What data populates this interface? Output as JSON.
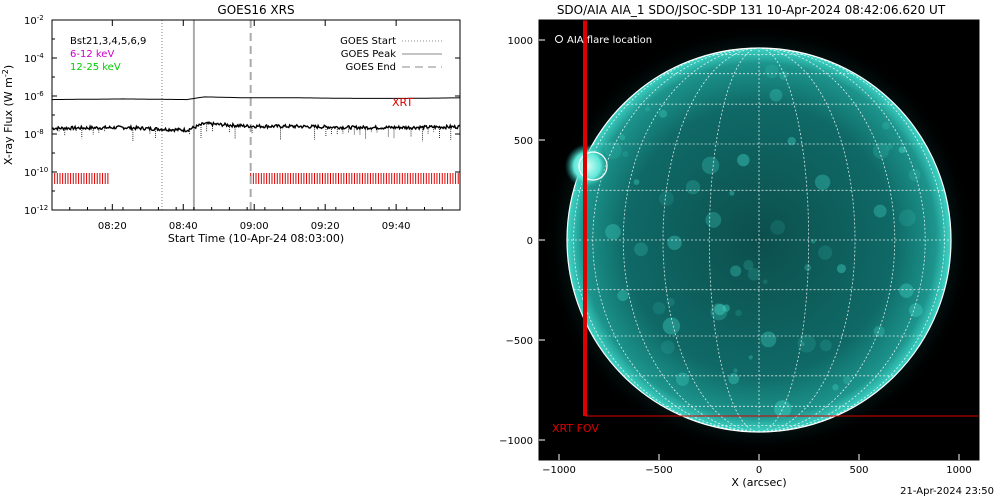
{
  "chart_data": [
    {
      "type": "line",
      "title": "GOES16 XRS",
      "xlabel": "Start Time (10-Apr-24 08:03:00)",
      "ylabel": "X-ray Flux (W m-2)",
      "ylabel_parts": {
        "main": "X-ray Flux (W m",
        "sup": "-2",
        "close": ")"
      },
      "x_range_minutes": [
        0,
        115
      ],
      "x_ticks": [
        {
          "label": "08:20",
          "minute": 17
        },
        {
          "label": "08:40",
          "minute": 37
        },
        {
          "label": "09:00",
          "minute": 57
        },
        {
          "label": "09:20",
          "minute": 77
        },
        {
          "label": "09:40",
          "minute": 97
        }
      ],
      "y_log_range": [
        -12,
        -2
      ],
      "y_ticks": [
        {
          "exp": -2,
          "label": "10",
          "sup": "-2"
        },
        {
          "exp": -4,
          "label": "10",
          "sup": "-4"
        },
        {
          "exp": -6,
          "label": "10",
          "sup": "-6"
        },
        {
          "exp": -8,
          "label": "10",
          "sup": "-8"
        },
        {
          "exp": -10,
          "label": "10",
          "sup": "-10"
        },
        {
          "exp": -12,
          "label": "10",
          "sup": "-12"
        }
      ],
      "legend_left": [
        {
          "text": "Bst21,3,4,5,6,9",
          "color": "#000000"
        },
        {
          "text": "6-12 keV",
          "color": "#cc00cc"
        },
        {
          "text": "12-25 keV",
          "color": "#00cc00"
        }
      ],
      "legend_right": [
        {
          "text": "GOES Start",
          "style": "dotted"
        },
        {
          "text": "GOES Peak",
          "style": "solid"
        },
        {
          "text": "GOES End",
          "style": "dashed"
        }
      ],
      "event_markers": {
        "start_minute": 31,
        "peak_minute": 40,
        "end_minute": 56
      },
      "series": [
        {
          "name": "long channel",
          "color": "#000000",
          "x": [
            0,
            20,
            38,
            43,
            55,
            70,
            85,
            100,
            115
          ],
          "y": [
            6.5e-07,
            7e-07,
            6.5e-07,
            9e-07,
            8e-07,
            8e-07,
            7.5e-07,
            7.5e-07,
            8e-07
          ]
        },
        {
          "name": "short channel",
          "color": "#000000",
          "x": [
            0,
            20,
            38,
            43,
            55,
            70,
            85,
            100,
            115
          ],
          "y": [
            2e-08,
            2.2e-08,
            1.6e-08,
            3.5e-08,
            2.6e-08,
            2.5e-08,
            2.2e-08,
            2.2e-08,
            2.4e-08
          ]
        }
      ],
      "xrt_label": "XRT",
      "xrt_coverage_minutes": [
        [
          0,
          16
        ],
        [
          56,
          115
        ]
      ],
      "xrt_color": "#dd0000"
    },
    {
      "type": "map",
      "title": "SDO/AIA AIA_1 SDO/JSOC-SDP 131 10-Apr-2024 08:42:06.620 UT",
      "xlabel": "X (arcsec)",
      "ylabel": "",
      "x_range": [
        -1100,
        1100
      ],
      "y_range": [
        -1100,
        1100
      ],
      "x_ticks": [
        -1000,
        -500,
        0,
        500,
        1000
      ],
      "y_ticks": [
        1000,
        500,
        0,
        -500,
        -1000
      ],
      "solar_radius_arcsec": 960,
      "legend": "AIA flare location",
      "flare_location_arcsec": [
        -830,
        370
      ],
      "fov_label": "XRT FOV",
      "fov_arcsec": {
        "x_min": -870,
        "x_max": 1100,
        "y_min": -880,
        "y_max": 1100
      },
      "colors": {
        "disk": "#0f6b68",
        "limb": "#33c9bd",
        "grid": "#ffffff",
        "fov": "#dd0000",
        "background": "#000000"
      }
    }
  ],
  "footer": {
    "date": "21-Apr-2024 23:50"
  }
}
